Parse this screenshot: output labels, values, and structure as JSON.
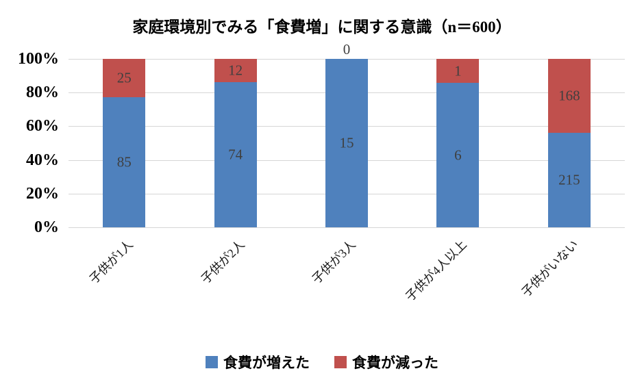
{
  "chart": {
    "title": "家庭環境別でみる「食費増」に関する意識（n＝600）"
  },
  "chart_data": {
    "type": "bar",
    "stacked": true,
    "percent": true,
    "title": "家庭環境別でみる「食費増」に関する意識（n＝600）",
    "categories": [
      "子供が1人",
      "子供が2人",
      "子供が3人",
      "子供が4人以上",
      "子供がいない"
    ],
    "series": [
      {
        "name": "食費が増えた",
        "color": "#4F81BD",
        "values": [
          85,
          74,
          15,
          6,
          215
        ]
      },
      {
        "name": "食費が減った",
        "color": "#C0504D",
        "values": [
          25,
          12,
          0,
          1,
          168
        ]
      }
    ],
    "y_ticks": [
      "100%",
      "80%",
      "60%",
      "40%",
      "20%",
      "0%"
    ],
    "ylim": [
      0,
      100
    ],
    "xlabel": "",
    "ylabel": "",
    "grid": true,
    "legend_position": "bottom",
    "value_label_color": "#3f3f3f",
    "gridline_color": "#d6d6d6"
  }
}
